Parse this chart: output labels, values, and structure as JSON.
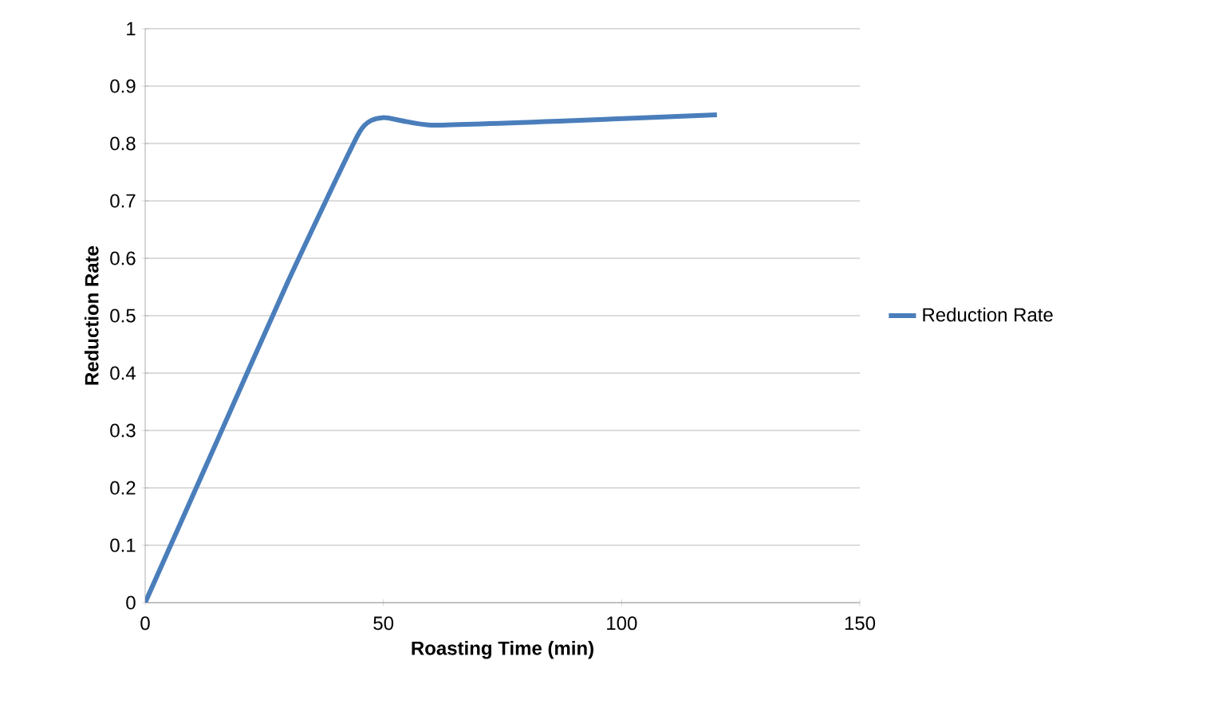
{
  "chart_data": {
    "type": "line",
    "xlabel": "Roasting Time (min)",
    "ylabel": "Reduction Rate",
    "series": [
      {
        "name": "Reduction Rate",
        "color": "#4a7ebb",
        "x": [
          0,
          15,
          30,
          45,
          50,
          60,
          90,
          120
        ],
        "values": [
          0,
          0.28,
          0.56,
          0.82,
          0.845,
          0.832,
          0.84,
          0.85
        ]
      }
    ],
    "xlim": [
      0,
      150
    ],
    "xticks": [
      0,
      50,
      100,
      150
    ],
    "ylim": [
      0,
      1
    ],
    "yticks": [
      0,
      0.1,
      0.2,
      0.3,
      0.4,
      0.5,
      0.6,
      0.7,
      0.8,
      0.9,
      1
    ],
    "grid": "y",
    "legend": "right",
    "marker": "none",
    "line_style": "solid"
  }
}
